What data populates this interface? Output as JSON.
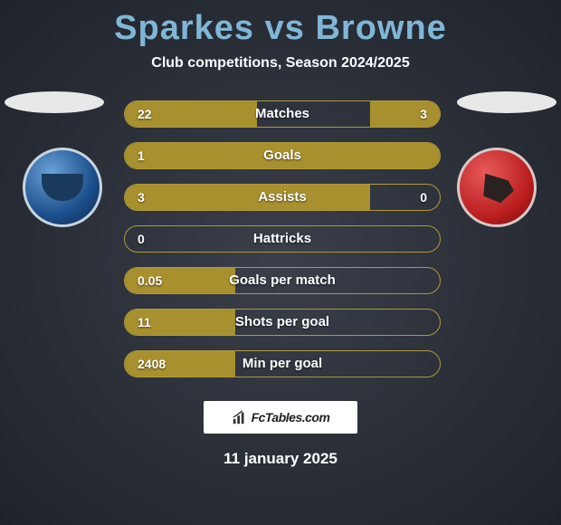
{
  "header": {
    "player1": "Sparkes",
    "vs": "vs",
    "player2": "Browne",
    "title_color": "#7fb6d6",
    "subtitle": "Club competitions, Season 2024/2025"
  },
  "teams": {
    "left_crest_label": "peterborough-crest",
    "right_crest_label": "walsall-crest"
  },
  "stats": {
    "bar_border_color": "#b0993b",
    "bar_fill_color": "#a8902e",
    "rows": [
      {
        "label": "Matches",
        "left_val": "22",
        "right_val": "3",
        "left_pct": 42,
        "right_pct": 22
      },
      {
        "label": "Goals",
        "left_val": "1",
        "right_val": "",
        "left_pct": 100,
        "right_pct": 0
      },
      {
        "label": "Assists",
        "left_val": "3",
        "right_val": "0",
        "left_pct": 78,
        "right_pct": 0
      },
      {
        "label": "Hattricks",
        "left_val": "0",
        "right_val": "",
        "left_pct": 0,
        "right_pct": 0
      },
      {
        "label": "Goals per match",
        "left_val": "0.05",
        "right_val": "",
        "left_pct": 35,
        "right_pct": 0
      },
      {
        "label": "Shots per goal",
        "left_val": "11",
        "right_val": "",
        "left_pct": 35,
        "right_pct": 0
      },
      {
        "label": "Min per goal",
        "left_val": "2408",
        "right_val": "",
        "left_pct": 35,
        "right_pct": 0
      }
    ]
  },
  "footer": {
    "logo_text": "FcTables.com",
    "date": "11 january 2025"
  },
  "colors": {
    "title": "#7fb6d6",
    "background_inner": "#3a3f4a",
    "background_outer": "#1e2229"
  }
}
